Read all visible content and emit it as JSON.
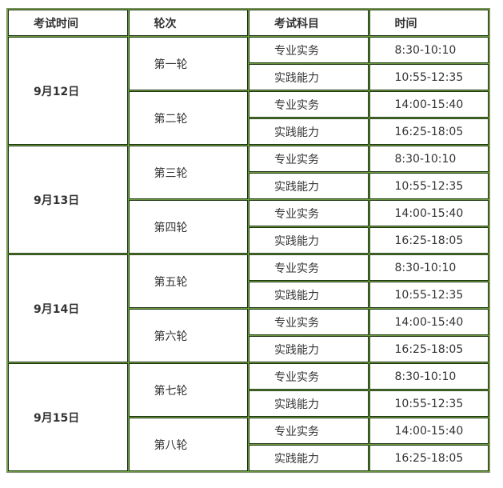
{
  "header": [
    "考试时间",
    "轮次",
    "考试科目",
    "时间"
  ],
  "days": [
    {
      "date": "9月12日",
      "rounds": [
        {
          "name": "第一轮",
          "sessions": [
            {
              "subject": "专业实务",
              "time": "8:30-10:10"
            },
            {
              "subject": "实践能力",
              "time": "10:55-12:35"
            }
          ]
        },
        {
          "name": "第二轮",
          "sessions": [
            {
              "subject": "专业实务",
              "time": "14:00-15:40"
            },
            {
              "subject": "实践能力",
              "time": "16:25-18:05"
            }
          ]
        }
      ]
    },
    {
      "date": "9月13日",
      "rounds": [
        {
          "name": "第三轮",
          "sessions": [
            {
              "subject": "专业实务",
              "time": "8:30-10:10"
            },
            {
              "subject": "实践能力",
              "time": "10:55-12:35"
            }
          ]
        },
        {
          "name": "第四轮",
          "sessions": [
            {
              "subject": "专业实务",
              "time": "14:00-15:40"
            },
            {
              "subject": "实践能力",
              "time": "16:25-18:05"
            }
          ]
        }
      ]
    },
    {
      "date": "9月14日",
      "rounds": [
        {
          "name": "第五轮",
          "sessions": [
            {
              "subject": "专业实务",
              "time": "8:30-10:10"
            },
            {
              "subject": "实践能力",
              "time": "10:55-12:35"
            }
          ]
        },
        {
          "name": "第六轮",
          "sessions": [
            {
              "subject": "专业实务",
              "time": "14:00-15:40"
            },
            {
              "subject": "实践能力",
              "time": "16:25-18:05"
            }
          ]
        }
      ]
    },
    {
      "date": "9月15日",
      "rounds": [
        {
          "name": "第七轮",
          "sessions": [
            {
              "subject": "专业实务",
              "time": "8:30-10:10"
            },
            {
              "subject": "实践能力",
              "time": "10:55-12:35"
            }
          ]
        },
        {
          "name": "第八轮",
          "sessions": [
            {
              "subject": "专业实务",
              "time": "14:00-15:40"
            },
            {
              "subject": "实践能力",
              "time": "16:25-18:05"
            }
          ]
        }
      ]
    }
  ]
}
